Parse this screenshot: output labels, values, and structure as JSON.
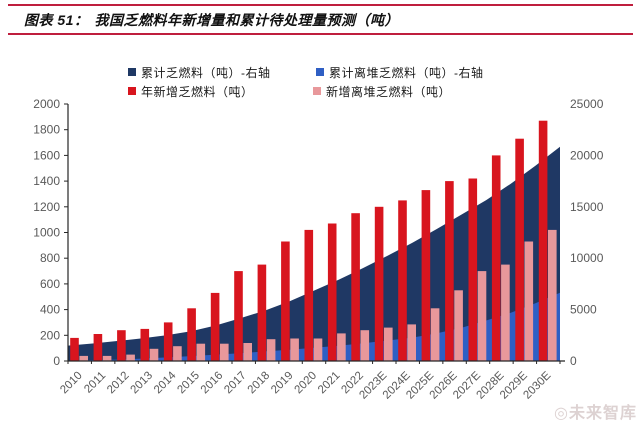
{
  "header": {
    "figure_label": "图表 51：",
    "title": "我国乏燃料年新增量和累计待处理量预测（吨）",
    "rule_color": "#bf1e3e"
  },
  "watermark": {
    "text": "◎未来智库"
  },
  "chart_data": {
    "type": "combo-area-bar",
    "title": "我国乏燃料年新增量和累计待处理量预测（吨）",
    "grid": false,
    "legend_position": "top",
    "categories": [
      "2010",
      "2011",
      "2012",
      "2013",
      "2014",
      "2015",
      "2016",
      "2017",
      "2018",
      "2019",
      "2020",
      "2021",
      "2022",
      "2023E",
      "2024E",
      "2025E",
      "2026E",
      "2027E",
      "2028E",
      "2029E",
      "2030E"
    ],
    "series": [
      {
        "name": "累计乏燃料（吨）-右轴",
        "type": "area",
        "axis": "right",
        "color": "#1f3864",
        "values": [
          1500,
          1700,
          1950,
          2200,
          2500,
          2900,
          3450,
          4150,
          4900,
          5800,
          6850,
          7900,
          9050,
          10250,
          11500,
          12850,
          14250,
          15650,
          17250,
          19000,
          20850
        ]
      },
      {
        "name": "累计离堆乏燃料（吨）-右轴",
        "type": "area",
        "axis": "right",
        "color": "#2f5fc4",
        "values": [
          50,
          90,
          140,
          230,
          350,
          480,
          620,
          760,
          930,
          1100,
          1280,
          1490,
          1730,
          1990,
          2280,
          2690,
          3240,
          3940,
          4690,
          5620,
          6640
        ]
      },
      {
        "name": "年新增乏燃料（吨）",
        "type": "bar",
        "axis": "left",
        "color": "#d8151e",
        "values": [
          180,
          210,
          240,
          250,
          300,
          410,
          530,
          700,
          750,
          930,
          1020,
          1070,
          1150,
          1200,
          1250,
          1330,
          1400,
          1420,
          1600,
          1730,
          1870
        ]
      },
      {
        "name": "新增离堆乏燃料（吨）",
        "type": "bar",
        "axis": "left",
        "color": "#e8989b",
        "values": [
          40,
          40,
          50,
          95,
          115,
          135,
          135,
          140,
          170,
          175,
          175,
          215,
          240,
          260,
          285,
          410,
          550,
          700,
          750,
          930,
          1020
        ]
      }
    ],
    "left_axis": {
      "min": 0,
      "max": 2000,
      "step": 200,
      "ticks": [
        "0",
        "200",
        "400",
        "600",
        "800",
        "1000",
        "1200",
        "1400",
        "1600",
        "1800",
        "2000"
      ]
    },
    "right_axis": {
      "min": 0,
      "max": 25000,
      "step": 5000,
      "ticks": [
        "0",
        "5000",
        "10000",
        "15000",
        "20000",
        "25000"
      ]
    },
    "axis_label_color": "#595959",
    "axis_line_color": "#262626"
  }
}
